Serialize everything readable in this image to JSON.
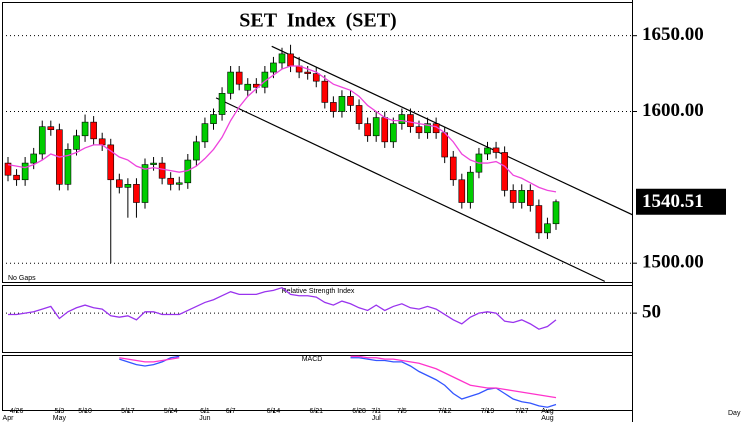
{
  "chart_data": [
    {
      "type": "candlestick",
      "title": "SET  Index  (SET)",
      "annotation": "No Gaps",
      "x_label": "Day",
      "categories": [
        null,
        "4/26",
        null,
        null,
        null,
        null,
        "5/3",
        null,
        null,
        "5/10",
        null,
        null,
        null,
        null,
        "5/17",
        null,
        null,
        null,
        null,
        "5/24",
        null,
        null,
        null,
        "6/1",
        null,
        null,
        "6/7",
        null,
        null,
        null,
        null,
        "6/14",
        null,
        null,
        null,
        null,
        "6/21",
        null,
        null,
        null,
        null,
        "6/28",
        null,
        "7/1",
        null,
        null,
        "7/5",
        null,
        null,
        null,
        null,
        "7/12",
        null,
        null,
        null,
        null,
        "7/19",
        null,
        null,
        null,
        "7/27",
        null,
        null,
        "Aug",
        null
      ],
      "months": [
        "Apr",
        null,
        null,
        null,
        null,
        null,
        "May",
        null,
        null,
        null,
        null,
        null,
        null,
        null,
        null,
        null,
        null,
        null,
        null,
        null,
        null,
        null,
        null,
        "Jun",
        null,
        null,
        null,
        null,
        null,
        null,
        null,
        null,
        null,
        null,
        null,
        null,
        null,
        null,
        null,
        null,
        null,
        null,
        null,
        "Jul",
        null,
        null,
        null,
        null,
        null,
        null,
        null,
        null,
        null,
        null,
        null,
        null,
        null,
        null,
        null,
        null,
        null,
        null,
        null,
        "Aug",
        null
      ],
      "open": [
        1566,
        1558,
        1555,
        1566,
        1572,
        1590,
        1588,
        1552,
        1575,
        1584,
        1593,
        1582,
        1578,
        1555,
        1550,
        1552,
        1540,
        1565,
        1566,
        1556,
        1552,
        1553,
        1568,
        1580,
        1592,
        1598,
        1612,
        1626,
        1614,
        1618,
        1616,
        1626,
        1632,
        1638,
        1630,
        1626,
        1625,
        1620,
        1606,
        1600,
        1610,
        1604,
        1592,
        1584,
        1596,
        1580,
        1592,
        1598,
        1590,
        1586,
        1592,
        1586,
        1570,
        1555,
        1540,
        1560,
        1572,
        1576,
        1573,
        1548,
        1540,
        1548,
        1538,
        1520,
        1526
      ],
      "high": [
        1570,
        1562,
        1570,
        1576,
        1594,
        1594,
        1592,
        1579,
        1588,
        1598,
        1597,
        1586,
        1582,
        1559,
        1556,
        1556,
        1569,
        1570,
        1570,
        1560,
        1557,
        1572,
        1584,
        1596,
        1602,
        1616,
        1630,
        1630,
        1622,
        1622,
        1630,
        1636,
        1642,
        1644,
        1636,
        1630,
        1629,
        1624,
        1610,
        1614,
        1614,
        1608,
        1596,
        1600,
        1600,
        1596,
        1602,
        1602,
        1594,
        1596,
        1596,
        1590,
        1574,
        1559,
        1564,
        1576,
        1580,
        1580,
        1577,
        1552,
        1552,
        1552,
        1542,
        1530,
        1542
      ],
      "low": [
        1554,
        1551,
        1551,
        1562,
        1568,
        1584,
        1548,
        1548,
        1571,
        1580,
        1578,
        1574,
        1500,
        1546,
        1530,
        1530,
        1536,
        1561,
        1552,
        1548,
        1548,
        1549,
        1564,
        1576,
        1588,
        1594,
        1608,
        1614,
        1610,
        1612,
        1612,
        1622,
        1628,
        1626,
        1622,
        1621,
        1616,
        1602,
        1596,
        1596,
        1600,
        1588,
        1580,
        1580,
        1576,
        1576,
        1588,
        1586,
        1582,
        1582,
        1582,
        1566,
        1551,
        1536,
        1536,
        1556,
        1568,
        1569,
        1544,
        1536,
        1536,
        1534,
        1516,
        1516,
        1522
      ],
      "close": [
        1558,
        1555,
        1566,
        1572,
        1590,
        1588,
        1552,
        1575,
        1584,
        1593,
        1582,
        1578,
        1555,
        1550,
        1552,
        1540,
        1565,
        1566,
        1556,
        1552,
        1553,
        1568,
        1580,
        1592,
        1598,
        1612,
        1626,
        1618,
        1618,
        1616,
        1626,
        1632,
        1638,
        1630,
        1626,
        1625,
        1620,
        1606,
        1600,
        1610,
        1604,
        1592,
        1584,
        1596,
        1580,
        1592,
        1598,
        1590,
        1586,
        1592,
        1586,
        1570,
        1555,
        1540,
        1560,
        1572,
        1576,
        1573,
        1548,
        1540,
        1548,
        1538,
        1520,
        1526,
        1540.51
      ],
      "color_up": "#00cc00",
      "color_down": "#ff0000",
      "ma": {
        "color": "#ee44dd",
        "values": [
          1565,
          1564,
          1563,
          1565,
          1568,
          1572,
          1570,
          1571,
          1573,
          1576,
          1578,
          1578,
          1574,
          1570,
          1568,
          1564,
          1562,
          1563,
          1562,
          1561,
          1560,
          1561,
          1564,
          1569,
          1575,
          1583,
          1594,
          1603,
          1610,
          1615,
          1620,
          1624,
          1628,
          1630,
          1630,
          1628,
          1626,
          1622,
          1618,
          1616,
          1614,
          1610,
          1604,
          1600,
          1596,
          1594,
          1594,
          1593,
          1592,
          1591,
          1590,
          1586,
          1580,
          1572,
          1568,
          1566,
          1566,
          1567,
          1564,
          1558,
          1556,
          1553,
          1550,
          1548,
          1547
        ]
      },
      "trendlines": [
        {
          "x": [
            30.8,
            72.9
          ],
          "y": [
            1643,
            1532
          ]
        },
        {
          "x": [
            24.3,
            69.7
          ],
          "y": [
            1609,
            1488
          ]
        }
      ],
      "ylim": [
        1487.6,
        1672.2
      ],
      "yticks": [
        {
          "value": 1650,
          "label": "1650.00"
        },
        {
          "value": 1600,
          "label": "1600.00"
        },
        {
          "value": 1500,
          "label": "1500.00"
        }
      ],
      "last_price": 1540.51,
      "grid": true
    },
    {
      "type": "line",
      "title": "Relative Strength Index",
      "series": [
        {
          "color": "#9933ee",
          "values": [
            49,
            49,
            50,
            51,
            53,
            55,
            46,
            51,
            54,
            56,
            54,
            53,
            48,
            47,
            48,
            45,
            51,
            51,
            49,
            49,
            49,
            52,
            55,
            58,
            60,
            63,
            66,
            64,
            64,
            64,
            66,
            67,
            69,
            64,
            63,
            63,
            62,
            58,
            56,
            59,
            57,
            54,
            52,
            56,
            52,
            55,
            57,
            54,
            53,
            55,
            53,
            49,
            45,
            42,
            47,
            50,
            51,
            50,
            44,
            43,
            45,
            42,
            38,
            40,
            45
          ]
        }
      ],
      "ylim": [
        21,
        71
      ],
      "yticks": [
        50
      ],
      "grid": true
    },
    {
      "type": "line",
      "title": "MACD",
      "series": [
        {
          "color": "#3355ff",
          "values": [
            null,
            null,
            null,
            null,
            null,
            null,
            null,
            null,
            null,
            null,
            null,
            null,
            null,
            7,
            5,
            3,
            2,
            3,
            5,
            8,
            9,
            null,
            null,
            null,
            null,
            null,
            null,
            null,
            null,
            null,
            null,
            null,
            null,
            null,
            null,
            null,
            null,
            null,
            null,
            null,
            8,
            8,
            7,
            6,
            6,
            5,
            5,
            2,
            -2,
            -5,
            -8,
            -12,
            -18,
            -22,
            -20,
            -18,
            -15,
            -14,
            -18,
            -22,
            -24,
            -25,
            -27,
            -28,
            -26
          ]
        },
        {
          "color": "#ff33cc",
          "values": [
            null,
            null,
            null,
            null,
            null,
            null,
            null,
            null,
            null,
            null,
            null,
            null,
            null,
            8,
            7,
            6,
            5,
            5,
            6,
            7,
            8,
            null,
            null,
            null,
            null,
            null,
            null,
            null,
            null,
            null,
            null,
            null,
            null,
            null,
            null,
            null,
            null,
            null,
            null,
            null,
            9,
            9,
            8,
            8,
            7,
            7,
            6,
            5,
            4,
            2,
            0,
            -3,
            -6,
            -9,
            -12,
            -13,
            -14,
            -14,
            -15,
            -16,
            -17,
            -18,
            -19,
            -20,
            -21
          ]
        }
      ],
      "ylim": [
        -30,
        10
      ]
    }
  ]
}
